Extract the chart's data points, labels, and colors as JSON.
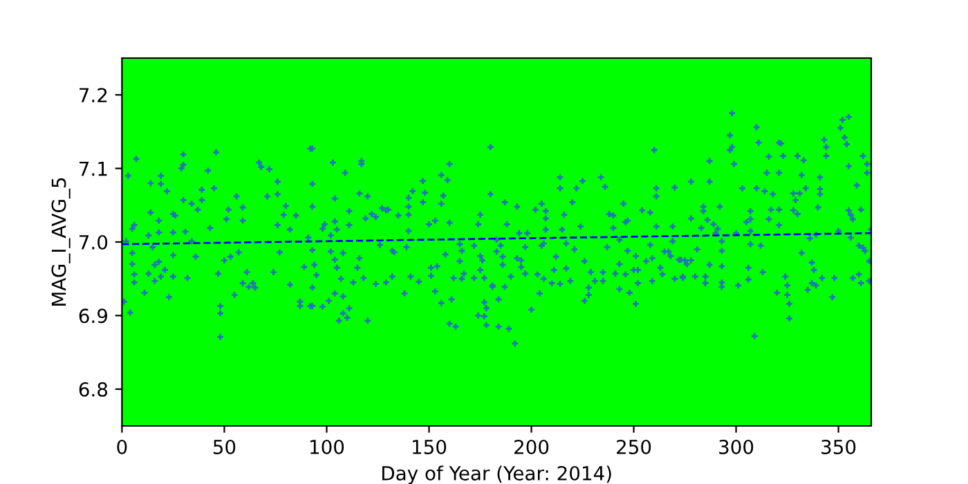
{
  "chart_data": {
    "type": "scatter",
    "xlabel": "Day of Year (Year: 2014)",
    "ylabel": "MAG_I_AVG_5",
    "xlim": [
      0,
      366
    ],
    "xticks": [
      0,
      50,
      100,
      150,
      200,
      250,
      300,
      350
    ],
    "ylim": [
      6.75,
      7.25
    ],
    "yticks": [
      6.8,
      6.9,
      {
        "value": 7.0,
        "label": "7.0"
      },
      7.1,
      7.2
    ],
    "grid": false,
    "legend": false,
    "series": [
      {
        "type": "scatter",
        "color": "#1f77b4",
        "marker": "cross",
        "x": [
          3,
          7,
          2,
          5,
          6,
          5,
          5,
          6,
          6,
          1,
          4,
          11,
          14,
          14,
          13,
          15,
          16,
          13,
          16,
          18,
          19,
          19,
          22,
          18,
          18,
          19,
          21,
          23,
          25,
          26,
          25,
          25,
          25,
          29,
          30,
          30,
          30,
          31,
          32,
          34,
          36,
          34,
          37,
          39,
          39,
          42,
          45,
          46,
          43,
          47,
          48,
          48,
          48,
          50,
          51,
          52,
          53,
          55,
          56,
          57,
          59,
          59,
          59,
          62,
          64,
          65,
          61,
          67,
          68,
          72,
          71,
          76,
          76,
          76,
          74,
          77,
          80,
          79,
          82,
          82,
          85,
          87,
          87,
          89,
          92,
          92,
          93,
          93,
          93,
          91,
          93,
          94,
          95,
          93,
          93,
          98,
          99,
          102,
          103,
          104,
          104,
          105,
          102,
          104,
          105,
          107,
          104,
          108,
          101,
          98,
          108,
          106,
          110,
          111,
          109,
          111,
          111,
          108,
          113,
          116,
          115,
          117,
          117,
          116,
          120,
          119,
          118,
          120,
          122,
          124,
          124,
          127,
          129,
          130,
          126,
          129,
          132,
          132,
          133,
          135,
          138,
          140,
          140,
          140,
          142,
          140,
          139,
          141,
          145,
          147,
          147,
          148,
          150,
          151,
          151,
          154,
          153,
          156,
          157,
          156,
          159,
          160,
          160,
          153,
          156,
          158,
          161,
          160,
          163,
          162,
          165,
          166,
          165,
          167,
          166,
          172,
          175,
          174,
          175,
          176,
          175,
          172,
          177,
          177,
          178,
          177,
          174,
          178,
          180,
          180,
          181,
          187,
          193,
          188,
          183,
          185,
          183,
          186,
          186,
          181,
          187,
          184,
          184,
          189,
          192,
          190,
          194,
          193,
          195,
          197,
          195,
          197,
          198,
          200,
          202,
          205,
          207,
          207,
          207,
          206,
          205,
          203,
          204,
          206,
          210,
          211,
          212,
          214,
          214,
          214,
          216,
          215,
          217,
          217,
          219,
          220,
          221,
          222,
          225,
          224,
          226,
          226,
          228,
          229,
          228,
          231,
          234,
          236,
          235,
          235,
          237,
          238,
          240,
          240,
          241,
          243,
          243,
          243,
          245,
          246,
          247,
          247,
          246,
          248,
          251,
          252,
          251,
          250,
          252,
          254,
          256,
          258,
          258,
          259,
          259,
          260,
          261,
          261,
          261,
          263,
          264,
          265,
          267,
          268,
          269,
          269,
          270,
          270,
          272,
          273,
          274,
          278,
          278,
          275,
          276,
          274,
          278,
          281,
          280,
          283,
          284,
          284,
          285,
          285,
          287,
          287,
          286,
          287,
          289,
          290,
          291,
          292,
          293,
          293,
          293,
          293,
          293,
          297,
          298,
          297,
          298,
          299,
          300,
          301,
          303,
          305,
          306,
          306,
          307,
          307,
          307,
          307,
          309,
          310,
          310,
          311,
          312,
          313,
          314,
          315,
          316,
          316,
          317,
          318,
          320,
          321,
          321,
          321,
          322,
          321,
          323,
          324,
          325,
          325,
          326,
          326,
          328,
          328,
          329,
          330,
          330,
          331,
          332,
          332,
          333,
          334,
          335,
          336,
          337,
          338,
          337,
          339,
          339,
          340,
          341,
          341,
          341,
          342,
          343,
          344,
          344,
          347,
          348,
          350,
          351,
          352,
          355,
          353,
          354,
          355,
          355,
          356,
          357,
          356,
          357,
          359,
          360,
          360,
          361,
          361,
          362,
          363,
          362,
          364,
          364,
          365,
          365,
          366
        ],
        "values": [
          7.09,
          7.113,
          7.001,
          7.018,
          7.023,
          6.985,
          6.97,
          6.956,
          6.945,
          6.919,
          6.904,
          6.931,
          7.08,
          7.04,
          7.009,
          6.993,
          6.969,
          6.957,
          6.947,
          7.029,
          7.09,
          7.079,
          7.069,
          7.013,
          6.973,
          6.953,
          6.962,
          6.925,
          7.038,
          7.036,
          7.013,
          6.982,
          6.953,
          7.1,
          7.105,
          7.119,
          7.057,
          7.014,
          6.951,
          7.001,
          6.98,
          7.052,
          7.044,
          7.057,
          7.071,
          7.097,
          7.073,
          7.122,
          7.019,
          6.957,
          6.913,
          6.903,
          6.871,
          6.975,
          7.031,
          7.044,
          6.98,
          6.928,
          7.062,
          6.986,
          7.047,
          7.029,
          6.944,
          6.939,
          6.944,
          6.938,
          6.959,
          7.108,
          7.102,
          7.099,
          7.062,
          7.082,
          7.065,
          7.023,
          6.959,
          6.986,
          7.049,
          7.037,
          7.017,
          6.942,
          7.036,
          6.919,
          6.913,
          6.966,
          6.913,
          7.127,
          7.127,
          7.079,
          7.048,
          7.006,
          6.989,
          6.969,
          6.955,
          6.938,
          6.913,
          7.018,
          7.024,
          7.009,
          7.108,
          7.059,
          7.028,
          7.017,
          6.987,
          6.976,
          6.965,
          6.95,
          6.93,
          6.926,
          6.92,
          6.912,
          6.903,
          6.893,
          6.897,
          6.91,
          7.094,
          7.042,
          7.023,
          6.985,
          6.945,
          6.978,
          6.965,
          7.11,
          7.106,
          7.066,
          7.062,
          7.032,
          6.951,
          6.893,
          7.038,
          7.034,
          6.943,
          7.046,
          7.043,
          7.044,
          6.996,
          6.945,
          6.953,
          6.988,
          6.986,
          7.036,
          6.93,
          7.037,
          7.048,
          7.06,
          7.069,
          7.015,
          6.993,
          6.953,
          6.946,
          7.054,
          7.083,
          7.067,
          7.024,
          6.965,
          6.954,
          6.967,
          7.029,
          7.052,
          7.063,
          7.091,
          7.084,
          7.106,
          7.026,
          6.933,
          6.917,
          6.983,
          6.922,
          6.889,
          6.885,
          6.951,
          6.997,
          6.988,
          6.974,
          6.957,
          6.95,
          6.995,
          7.037,
          7.024,
          6.981,
          6.975,
          6.962,
          6.951,
          6.951,
          6.918,
          6.91,
          6.899,
          6.9,
          6.887,
          7.129,
          7.065,
          6.939,
          7.054,
          7.048,
          7.024,
          7.003,
          6.995,
          6.987,
          6.98,
          6.969,
          6.941,
          6.939,
          6.922,
          6.885,
          6.882,
          6.862,
          6.953,
          7.012,
          6.978,
          6.975,
          6.993,
          6.966,
          6.957,
          7.012,
          6.908,
          7.044,
          7.052,
          7.042,
          7.032,
          7.017,
          6.998,
          6.995,
          6.956,
          6.93,
          6.95,
          6.944,
          6.962,
          6.98,
          6.943,
          7.088,
          7.073,
          7.037,
          7.017,
          6.998,
          6.964,
          6.947,
          7.054,
          6.99,
          7.073,
          7.083,
          7.021,
          6.974,
          6.92,
          6.928,
          6.959,
          6.938,
          6.947,
          7.088,
          7.075,
          6.959,
          6.947,
          6.993,
          7.038,
          7.036,
          7.019,
          6.957,
          6.97,
          6.936,
          7.003,
          7.052,
          7.027,
          7.029,
          6.988,
          6.956,
          6.931,
          6.916,
          6.944,
          6.981,
          6.962,
          6.962,
          7.043,
          6.974,
          7.04,
          6.996,
          6.978,
          6.947,
          7.125,
          7.073,
          7.062,
          7.021,
          6.965,
          6.956,
          6.987,
          6.987,
          6.981,
          7.021,
          7.001,
          7.074,
          6.95,
          6.976,
          6.976,
          6.953,
          7.082,
          7.032,
          6.975,
          6.97,
          6.951,
          6.975,
          6.99,
          6.953,
          7.019,
          7.048,
          7.042,
          6.953,
          6.944,
          7.11,
          7.082,
          7.03,
          6.969,
          7.024,
          7.012,
          7.018,
          7.048,
          7.001,
          6.988,
          6.967,
          6.945,
          6.939,
          7.125,
          7.129,
          7.145,
          7.175,
          7.106,
          7.012,
          6.941,
          7.073,
          7.027,
          6.965,
          6.949,
          7.042,
          7.031,
          6.997,
          7.015,
          6.872,
          7.073,
          7.156,
          7.135,
          6.995,
          6.959,
          7.069,
          7.094,
          7.116,
          7.031,
          7.044,
          7.065,
          6.931,
          7.044,
          7.094,
          7.135,
          7.134,
          7.023,
          7.117,
          6.953,
          6.941,
          6.928,
          6.916,
          6.896,
          7.043,
          7.066,
          7.057,
          7.038,
          7.117,
          7.066,
          7.091,
          6.985,
          7.111,
          7.073,
          6.935,
          7.005,
          6.972,
          6.962,
          6.944,
          6.941,
          7.01,
          7.047,
          7.072,
          7.065,
          7.088,
          6.951,
          7.139,
          7.129,
          7.117,
          6.925,
          6.951,
          7.015,
          7.155,
          7.166,
          7.17,
          7.142,
          7.133,
          7.103,
          7.043,
          7.037,
          7.031,
          7.006,
          6.951,
          7.077,
          6.995,
          6.956,
          6.944,
          7.044,
          7.117,
          6.988,
          6.992,
          7.094,
          7.106,
          6.974,
          6.947,
          7.017
        ]
      },
      {
        "type": "line",
        "color": "#0000ff",
        "line_style": "dashed",
        "x": [
          0,
          366
        ],
        "values": [
          6.997,
          7.012
        ]
      }
    ]
  }
}
